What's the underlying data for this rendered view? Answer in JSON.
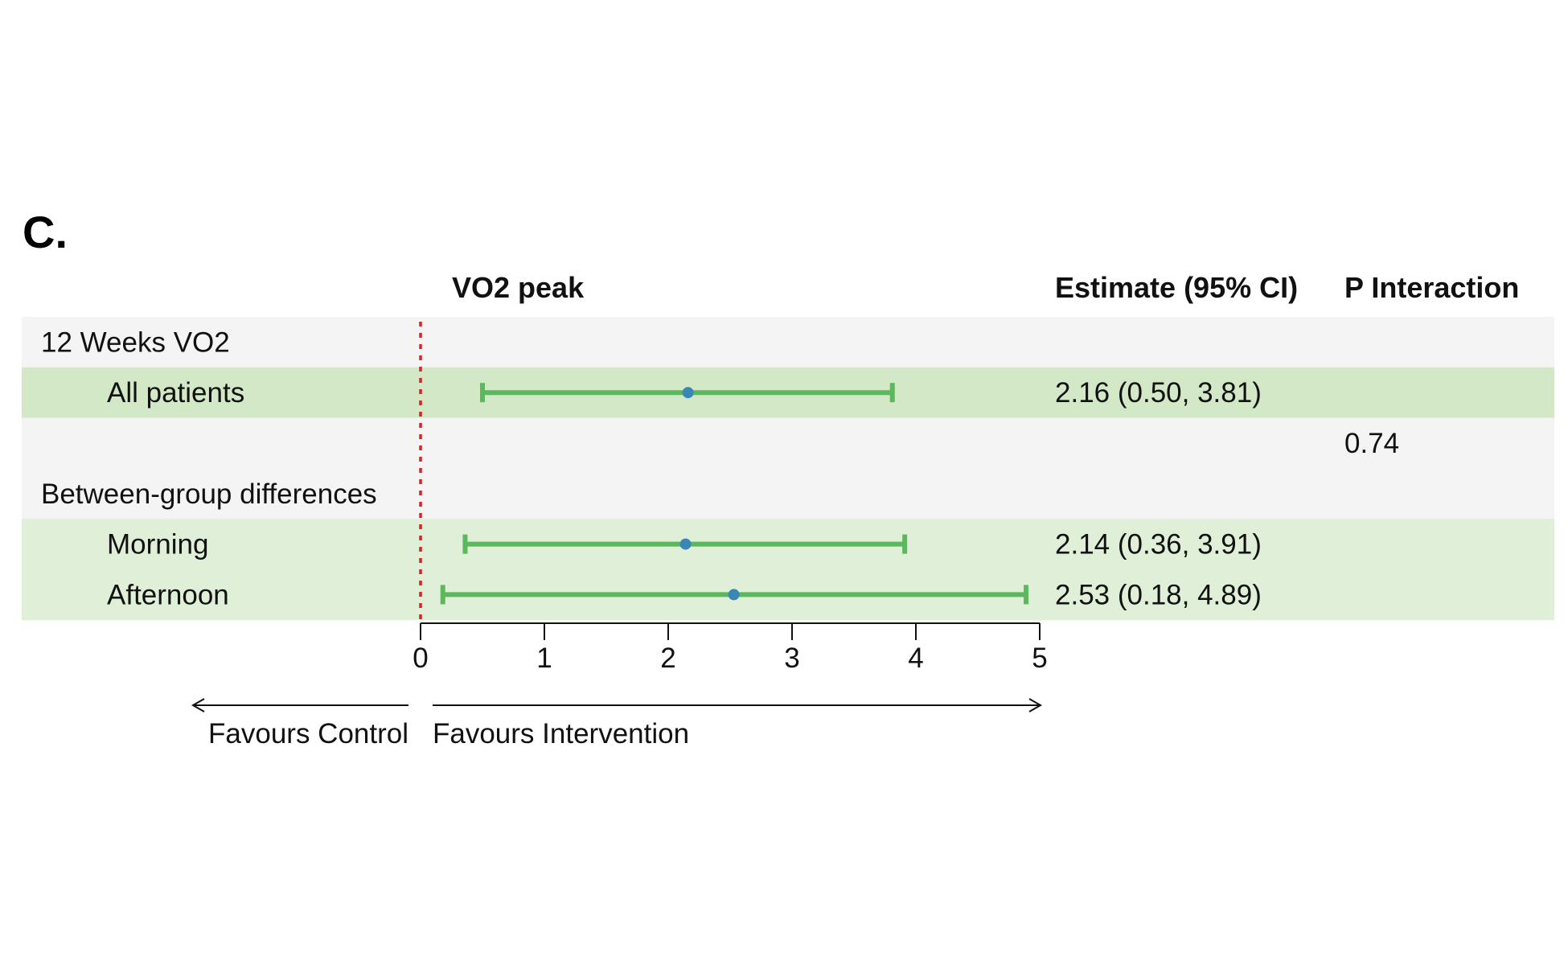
{
  "panel_letter": "C.",
  "headers": {
    "plot": "VO2 peak",
    "estimate": "Estimate (95% CI)",
    "p_interaction": "P Interaction"
  },
  "rows": [
    {
      "label": "12 Weeks VO2",
      "indent": false,
      "kind": "header",
      "shade": "#f4f4f4"
    },
    {
      "label": "All patients",
      "indent": true,
      "kind": "estimate",
      "shade": "#d3e8c6",
      "estimate": 2.16,
      "lower": 0.5,
      "upper": 3.81,
      "estimate_text": "2.16 (0.50, 3.81)"
    },
    {
      "label": "",
      "indent": false,
      "kind": "p",
      "shade": "#f4f4f4",
      "p_text": "0.74"
    },
    {
      "label": "Between-group differences",
      "indent": false,
      "kind": "header",
      "shade": "#f4f4f4"
    },
    {
      "label": "Morning",
      "indent": true,
      "kind": "estimate",
      "shade": "#e0efd7",
      "estimate": 2.14,
      "lower": 0.36,
      "upper": 3.91,
      "estimate_text": "2.14 (0.36, 3.91)"
    },
    {
      "label": "Afternoon",
      "indent": true,
      "kind": "estimate",
      "shade": "#e0efd7",
      "estimate": 2.53,
      "lower": 0.18,
      "upper": 4.89,
      "estimate_text": "2.53 (0.18, 4.89)"
    }
  ],
  "chart_data": {
    "type": "forest",
    "title": "VO2 peak",
    "xlim": [
      0,
      5
    ],
    "x_ticks": [
      0,
      1,
      2,
      3,
      4,
      5
    ],
    "reference_line": 0,
    "categories": [
      "All patients",
      "Morning",
      "Afternoon"
    ],
    "series": [
      {
        "estimates": [
          2.16,
          2.14,
          2.53
        ],
        "lower": [
          0.5,
          0.36,
          0.18
        ],
        "upper": [
          3.81,
          3.91,
          4.89
        ]
      }
    ],
    "p_interaction": 0.74
  },
  "favours": {
    "left": "Favours Control",
    "right": "Favours Intervention"
  },
  "colors": {
    "ci_line": "#5cb85c",
    "point": "#3a86b4",
    "reference": "#e02020",
    "axis": "#111111"
  }
}
